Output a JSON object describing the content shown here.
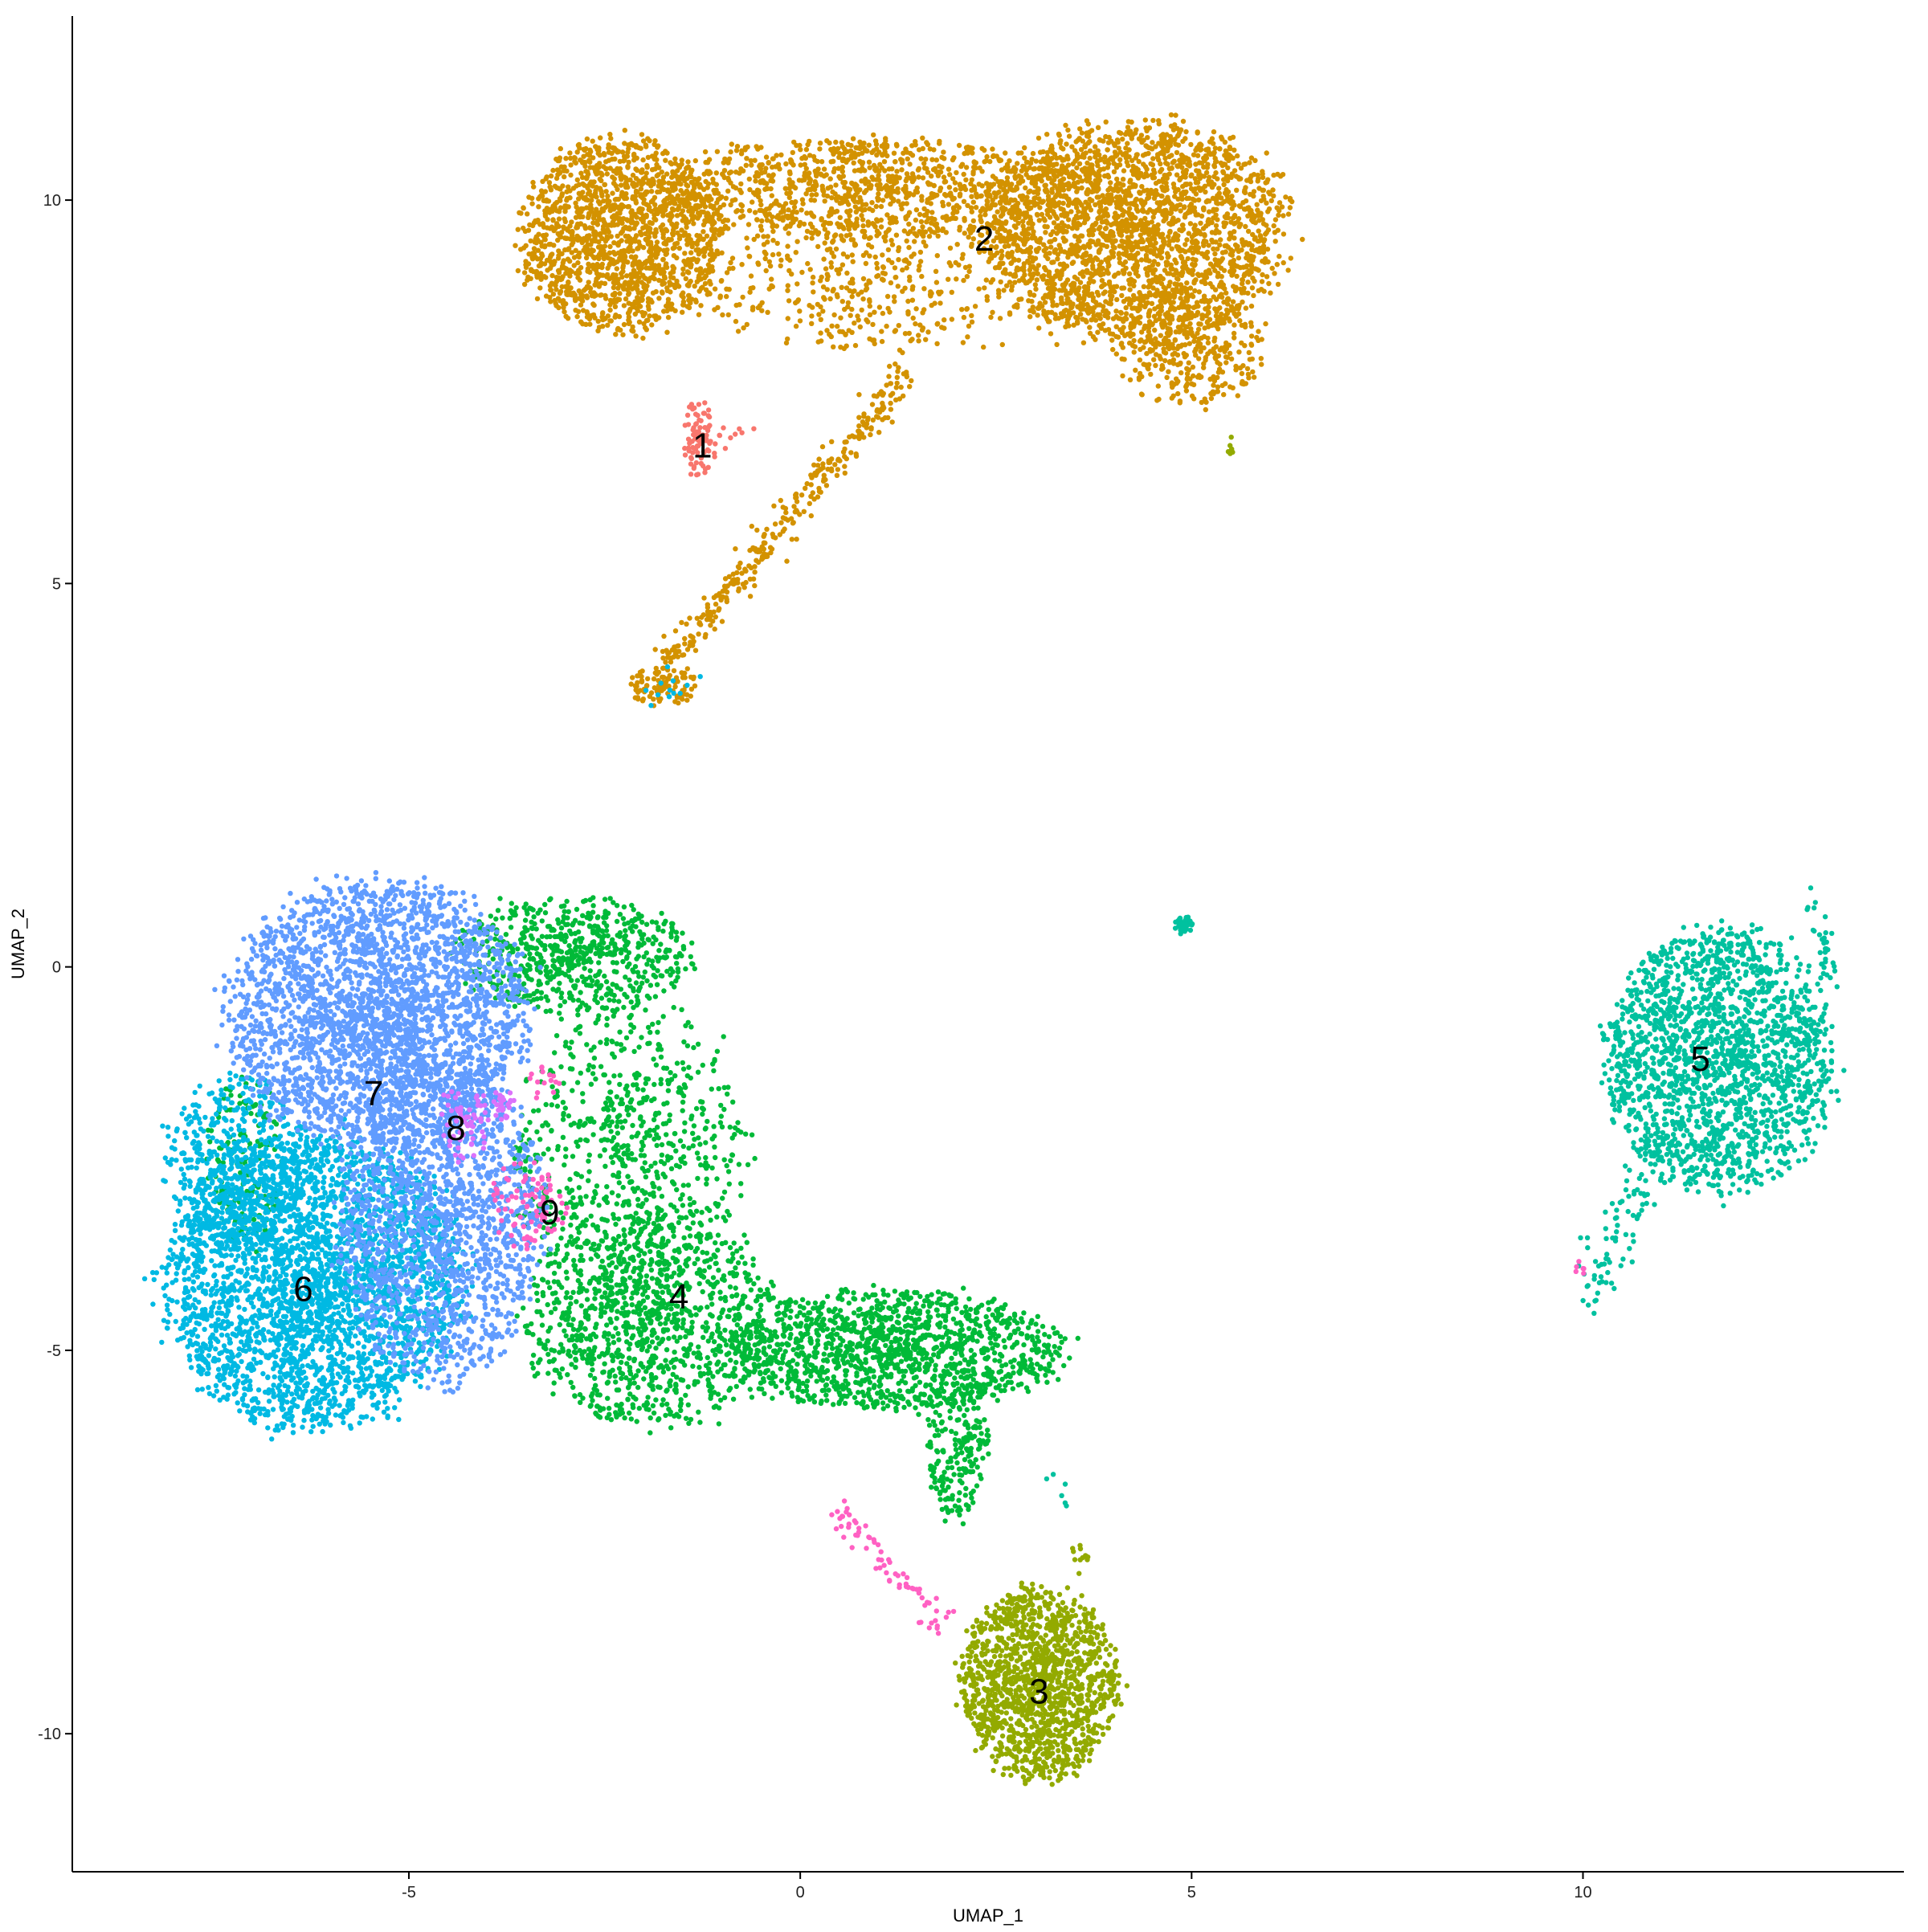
{
  "chart_data": {
    "type": "scatter",
    "title": "",
    "xlabel": "UMAP_1",
    "ylabel": "UMAP_2",
    "xlim": [
      -9.3,
      14.1
    ],
    "ylim": [
      -11.8,
      12.4
    ],
    "x_ticks": [
      -5,
      0,
      5,
      10
    ],
    "y_ticks": [
      -10,
      -5,
      0,
      5,
      10
    ],
    "x_tick_labels": [
      "-5",
      "0",
      "5",
      "10"
    ],
    "y_tick_labels": [
      "-10",
      "-5",
      "0",
      "5",
      "10"
    ],
    "grid": false,
    "legend": "none",
    "cluster_labels": [
      {
        "label": "1",
        "x": -1.25,
        "y": 6.8
      },
      {
        "label": "2",
        "x": 2.35,
        "y": 9.5
      },
      {
        "label": "3",
        "x": 3.05,
        "y": -9.45
      },
      {
        "label": "4",
        "x": -1.55,
        "y": -4.3
      },
      {
        "label": "5",
        "x": 11.5,
        "y": -1.2
      },
      {
        "label": "6",
        "x": -6.35,
        "y": -4.2
      },
      {
        "label": "7",
        "x": -5.45,
        "y": -1.65
      },
      {
        "label": "8",
        "x": -4.4,
        "y": -2.1
      },
      {
        "label": "9",
        "x": -3.2,
        "y": -3.2
      }
    ],
    "series": [
      {
        "name": "1",
        "color": "#F8766D",
        "regions": [
          {
            "shape": "ellipse",
            "cx": -1.3,
            "cy": 6.9,
            "rx": 0.18,
            "ry": 0.55,
            "n": 70
          },
          {
            "shape": "line",
            "x0": -1.3,
            "y0": 6.7,
            "x1": -0.75,
            "y1": 7.0,
            "w": 0.08,
            "n": 20
          }
        ]
      },
      {
        "name": "2",
        "color": "#D39200",
        "regions": [
          {
            "shape": "ellipse",
            "cx": -2.3,
            "cy": 9.55,
            "rx": 1.3,
            "ry": 1.25,
            "n": 1500
          },
          {
            "shape": "ellipse",
            "cx": 4.3,
            "cy": 9.6,
            "rx": 1.9,
            "ry": 1.45,
            "n": 2300
          },
          {
            "shape": "ellipse",
            "cx": 1.0,
            "cy": 10.15,
            "rx": 2.9,
            "ry": 0.65,
            "n": 1100
          },
          {
            "shape": "ellipse",
            "cx": 1.2,
            "cy": 8.9,
            "rx": 2.7,
            "ry": 0.85,
            "n": 500
          },
          {
            "shape": "ellipse",
            "cx": 5.0,
            "cy": 8.1,
            "rx": 0.9,
            "ry": 0.8,
            "n": 350
          },
          {
            "shape": "line",
            "x0": 1.4,
            "y0": 7.8,
            "x1": -1.8,
            "y1": 3.8,
            "w": 0.1,
            "n": 320
          },
          {
            "shape": "ellipse",
            "cx": -1.75,
            "cy": 3.65,
            "rx": 0.45,
            "ry": 0.25,
            "n": 90
          }
        ]
      },
      {
        "name": "3",
        "color": "#93AA00",
        "regions": [
          {
            "shape": "ellipse",
            "cx": 3.05,
            "cy": -9.35,
            "rx": 1.0,
            "ry": 1.25,
            "n": 1400
          },
          {
            "shape": "line",
            "x0": 3.5,
            "y0": -7.5,
            "x1": 3.6,
            "y1": -7.9,
            "w": 0.05,
            "n": 12
          },
          {
            "shape": "ellipse",
            "cx": 5.5,
            "cy": 6.8,
            "rx": 0.04,
            "ry": 0.12,
            "n": 6
          }
        ]
      },
      {
        "name": "4",
        "color": "#00BA38",
        "regions": [
          {
            "shape": "ellipse",
            "cx": -2.9,
            "cy": 0.15,
            "rx": 1.5,
            "ry": 0.75,
            "n": 650
          },
          {
            "shape": "ellipse",
            "cx": -2.2,
            "cy": -2.4,
            "rx": 1.5,
            "ry": 1.9,
            "n": 700
          },
          {
            "shape": "ellipse",
            "cx": -1.9,
            "cy": -4.6,
            "rx": 1.6,
            "ry": 1.4,
            "n": 1100
          },
          {
            "shape": "ellipse",
            "cx": 1.2,
            "cy": -5.0,
            "rx": 2.2,
            "ry": 0.8,
            "n": 1300
          },
          {
            "shape": "ellipse",
            "cx": 2.0,
            "cy": -6.2,
            "rx": 0.4,
            "ry": 1.0,
            "n": 220
          },
          {
            "shape": "ellipse",
            "cx": -7.1,
            "cy": -2.5,
            "rx": 0.5,
            "ry": 1.2,
            "n": 140
          }
        ]
      },
      {
        "name": "5",
        "color": "#00C19F",
        "regions": [
          {
            "shape": "ellipse",
            "cx": 11.75,
            "cy": -1.2,
            "rx": 1.45,
            "ry": 1.7,
            "n": 1900
          },
          {
            "shape": "line",
            "x0": 10.0,
            "y0": -4.4,
            "x1": 11.0,
            "y1": -2.4,
            "w": 0.15,
            "n": 90
          },
          {
            "shape": "line",
            "x0": 12.9,
            "y0": 0.9,
            "x1": 13.2,
            "y1": -0.2,
            "w": 0.07,
            "n": 35
          },
          {
            "shape": "ellipse",
            "cx": 4.9,
            "cy": 0.55,
            "rx": 0.12,
            "ry": 0.12,
            "n": 30
          },
          {
            "shape": "ellipse",
            "cx": 3.2,
            "cy": -6.9,
            "rx": 0.3,
            "ry": 0.3,
            "n": 6
          }
        ]
      },
      {
        "name": "6",
        "color": "#00B9E3",
        "regions": [
          {
            "shape": "ellipse",
            "cx": -6.2,
            "cy": -4.1,
            "rx": 1.9,
            "ry": 1.9,
            "n": 3000
          },
          {
            "shape": "ellipse",
            "cx": -7.2,
            "cy": -2.6,
            "rx": 0.9,
            "ry": 1.2,
            "n": 500
          },
          {
            "shape": "ellipse",
            "cx": -1.7,
            "cy": 3.6,
            "rx": 0.5,
            "ry": 0.3,
            "n": 12
          }
        ]
      },
      {
        "name": "7",
        "color": "#619CFF",
        "regions": [
          {
            "shape": "ellipse",
            "cx": -5.4,
            "cy": -0.6,
            "rx": 1.9,
            "ry": 1.7,
            "n": 2800
          },
          {
            "shape": "ellipse",
            "cx": -4.6,
            "cy": -3.3,
            "rx": 1.3,
            "ry": 2.1,
            "n": 1600
          }
        ]
      },
      {
        "name": "8",
        "color": "#DB72FB",
        "regions": [
          {
            "shape": "ellipse",
            "cx": -4.3,
            "cy": -2.0,
            "rx": 0.35,
            "ry": 0.55,
            "n": 60
          },
          {
            "shape": "ellipse",
            "cx": -3.8,
            "cy": -1.8,
            "rx": 0.15,
            "ry": 0.2,
            "n": 25
          }
        ]
      },
      {
        "name": "9",
        "color": "#FF61C3",
        "regions": [
          {
            "shape": "ellipse",
            "cx": -3.5,
            "cy": -3.1,
            "rx": 0.5,
            "ry": 0.55,
            "n": 85
          },
          {
            "shape": "ellipse",
            "cx": -3.3,
            "cy": -1.5,
            "rx": 0.2,
            "ry": 0.25,
            "n": 15
          },
          {
            "shape": "line",
            "x0": 0.4,
            "y0": -7.0,
            "x1": 1.9,
            "y1": -8.7,
            "w": 0.08,
            "n": 70
          },
          {
            "shape": "ellipse",
            "cx": 9.95,
            "cy": -3.9,
            "rx": 0.1,
            "ry": 0.15,
            "n": 6
          }
        ]
      }
    ]
  }
}
